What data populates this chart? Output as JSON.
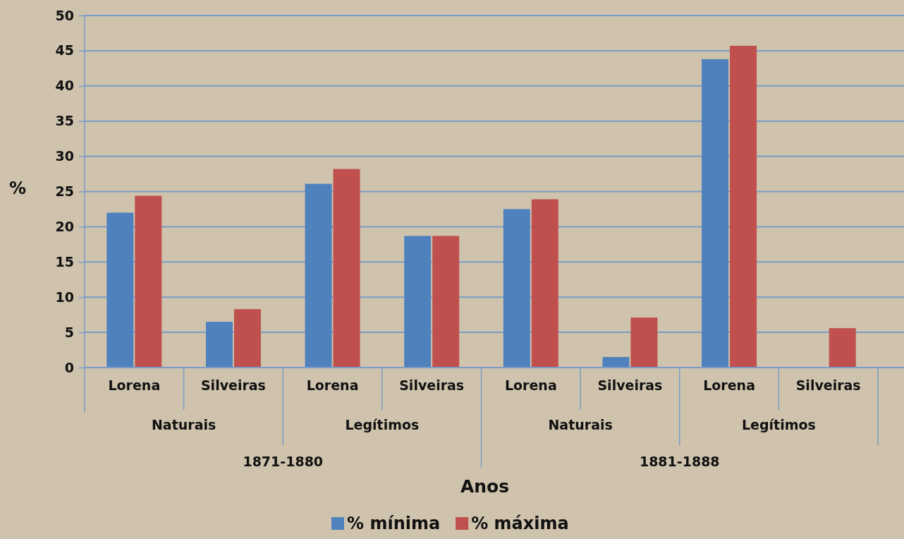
{
  "chart_data": {
    "type": "bar",
    "ylabel": "%",
    "xlabel": "Anos",
    "categories": [
      "Lorena",
      "Silveiras",
      "Lorena",
      "Silveiras",
      "Lorena",
      "Silveiras",
      "Lorena",
      "Silveiras"
    ],
    "series": [
      {
        "name": "% mínima",
        "color": "#4f81bd",
        "values": [
          22,
          6.5,
          26.1,
          18.7,
          22.5,
          1.5,
          43.8,
          null
        ]
      },
      {
        "name": "% máxima",
        "color": "#c0504d",
        "values": [
          24.4,
          8.3,
          28.2,
          18.7,
          23.9,
          7.1,
          45.7,
          5.6
        ]
      }
    ],
    "annotations": [
      "Naturais",
      "Legítimos",
      "Naturais",
      "Legítimos",
      "1871-1880",
      "1881-1888"
    ],
    "ylim": [
      0,
      50
    ],
    "yticks": [
      0,
      5,
      10,
      15,
      20,
      25,
      30,
      35,
      40,
      45,
      50
    ],
    "grid": "y",
    "legend": "bottom"
  }
}
